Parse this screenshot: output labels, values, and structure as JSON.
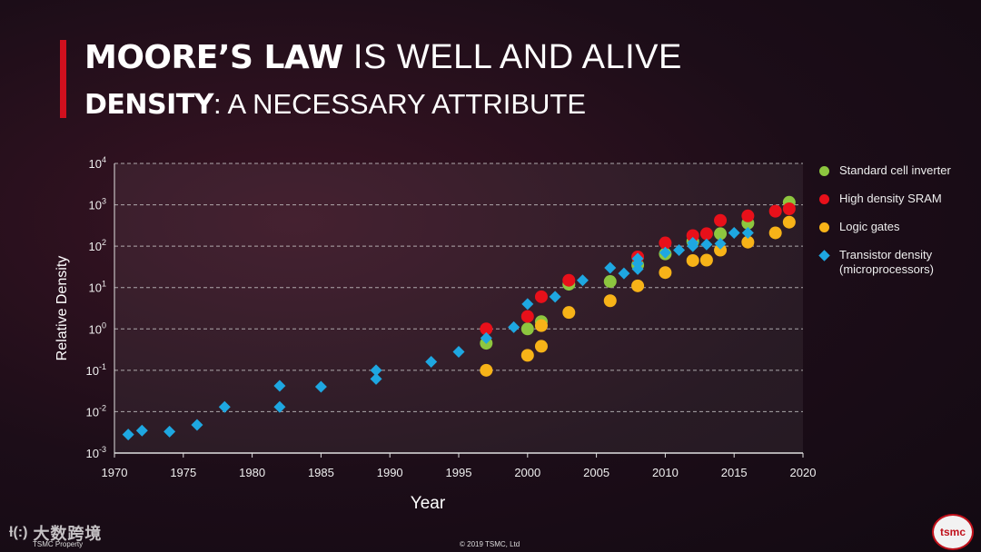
{
  "header": {
    "title_bold": "MOORE’S LAW",
    "title_rest": " IS WELL AND ALIVE",
    "subtitle_bold": "DENSITY",
    "subtitle_rest": ": A NECESSARY ATTRIBUTE"
  },
  "legend": {
    "items": [
      {
        "label": "Standard cell inverter",
        "label2": "",
        "color": "#8dc63f",
        "marker": "circle"
      },
      {
        "label": "High density SRAM",
        "label2": "",
        "color": "#e8101a",
        "marker": "circle"
      },
      {
        "label": "Logic gates",
        "label2": "",
        "color": "#f7b318",
        "marker": "circle"
      },
      {
        "label": "Transistor density",
        "label2": "(microprocessors)",
        "color": "#1ea7e1",
        "marker": "diamond"
      }
    ]
  },
  "footer": {
    "left": "TSMC Property",
    "center": "© 2019 TSMC, Ltd",
    "watermark_icon": "ƚ(:)",
    "watermark_text": "大数跨境",
    "logo_text": "tsmc"
  },
  "chart_data": {
    "type": "scatter",
    "xlabel": "Year",
    "ylabel": "Relative Density",
    "xlim": [
      1970,
      2020
    ],
    "ylim_log10": [
      -3,
      4
    ],
    "log_y": true,
    "grid": "horizontal dashed",
    "legend_position": "right",
    "x_ticks": [
      "1970",
      "1975",
      "1980",
      "1985",
      "1990",
      "1995",
      "2000",
      "2005",
      "2010",
      "2015",
      "2020"
    ],
    "y_ticks": [
      {
        "base": "10",
        "exp": "-3"
      },
      {
        "base": "10",
        "exp": "-2"
      },
      {
        "base": "10",
        "exp": "-1"
      },
      {
        "base": "10",
        "exp": "0"
      },
      {
        "base": "10",
        "exp": "1"
      },
      {
        "base": "10",
        "exp": "2"
      },
      {
        "base": "10",
        "exp": "3"
      },
      {
        "base": "10",
        "exp": "4"
      }
    ],
    "series": [
      {
        "name": "Standard cell inverter",
        "color": "#8dc63f",
        "marker": "circle",
        "points": [
          [
            1997,
            0.45
          ],
          [
            2000,
            1.0
          ],
          [
            2001,
            1.5
          ],
          [
            2003,
            12
          ],
          [
            2006,
            14
          ],
          [
            2008,
            35
          ],
          [
            2010,
            65
          ],
          [
            2012,
            130
          ],
          [
            2014,
            200
          ],
          [
            2016,
            360
          ],
          [
            2019,
            1150
          ]
        ]
      },
      {
        "name": "High density SRAM",
        "color": "#e8101a",
        "marker": "circle",
        "points": [
          [
            1997,
            1.0
          ],
          [
            2000,
            2.0
          ],
          [
            2001,
            6.0
          ],
          [
            2003,
            15
          ],
          [
            2008,
            55
          ],
          [
            2010,
            120
          ],
          [
            2012,
            180
          ],
          [
            2013,
            200
          ],
          [
            2014,
            420
          ],
          [
            2016,
            540
          ],
          [
            2018,
            700
          ],
          [
            2019,
            800
          ]
        ]
      },
      {
        "name": "Logic gates",
        "color": "#f7b318",
        "marker": "circle",
        "points": [
          [
            1997,
            0.1
          ],
          [
            2000,
            0.23
          ],
          [
            2001,
            0.38
          ],
          [
            2001,
            1.2
          ],
          [
            2003,
            2.5
          ],
          [
            2006,
            4.8
          ],
          [
            2008,
            11
          ],
          [
            2010,
            23
          ],
          [
            2012,
            45
          ],
          [
            2013,
            46
          ],
          [
            2014,
            80
          ],
          [
            2016,
            125
          ],
          [
            2018,
            210
          ],
          [
            2019,
            380
          ]
        ]
      },
      {
        "name": "Transistor density",
        "color": "#1ea7e1",
        "marker": "diamond",
        "points": [
          [
            1971,
            0.0028
          ],
          [
            1972,
            0.0035
          ],
          [
            1974,
            0.0033
          ],
          [
            1976,
            0.0048
          ],
          [
            1978,
            0.013
          ],
          [
            1982,
            0.013
          ],
          [
            1982,
            0.042
          ],
          [
            1985,
            0.04
          ],
          [
            1989,
            0.062
          ],
          [
            1989,
            0.1
          ],
          [
            1993,
            0.16
          ],
          [
            1995,
            0.28
          ],
          [
            1997,
            0.6
          ],
          [
            1999,
            1.1
          ],
          [
            2000,
            4.0
          ],
          [
            2002,
            6.0
          ],
          [
            2004,
            15
          ],
          [
            2006,
            30
          ],
          [
            2007,
            22
          ],
          [
            2008,
            28
          ],
          [
            2008,
            38
          ],
          [
            2008,
            50
          ],
          [
            2010,
            70
          ],
          [
            2011,
            80
          ],
          [
            2012,
            100
          ],
          [
            2012,
            120
          ],
          [
            2013,
            110
          ],
          [
            2014,
            115
          ],
          [
            2015,
            210
          ],
          [
            2016,
            210
          ]
        ]
      }
    ]
  }
}
